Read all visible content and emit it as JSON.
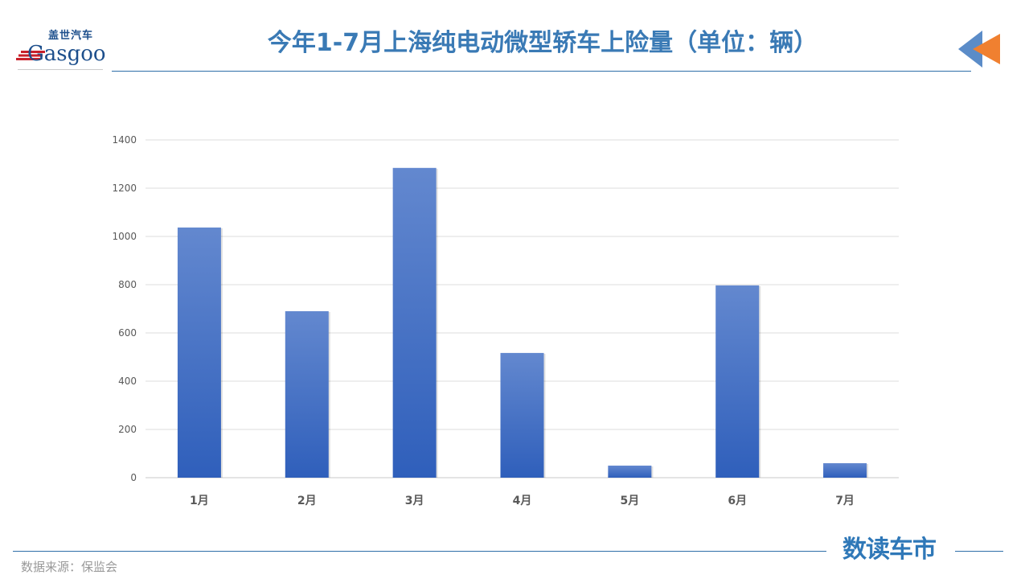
{
  "header": {
    "title": "今年1-7月上海纯电动微型轿车上险量（单位：辆）"
  },
  "logo": {
    "cn": "盖世汽车",
    "en": "Gasgoo"
  },
  "footer": {
    "source": "数据来源：保监会",
    "brand": "数读车市"
  },
  "colors": {
    "bar_top": "#6388cf",
    "bar_bottom": "#2f5fbb",
    "title": "#3a7ab5",
    "accent_orange": "#f08030",
    "accent_blue": "#5b8cc8"
  },
  "chart_data": {
    "type": "bar",
    "categories": [
      "1月",
      "2月",
      "3月",
      "4月",
      "5月",
      "6月",
      "7月"
    ],
    "values": [
      1037,
      690,
      1284,
      517,
      50,
      797,
      60
    ],
    "ylim": [
      0,
      1400
    ],
    "yticks": [
      0,
      200,
      400,
      600,
      800,
      1000,
      1200,
      1400
    ],
    "grid": true,
    "legend": "none"
  }
}
